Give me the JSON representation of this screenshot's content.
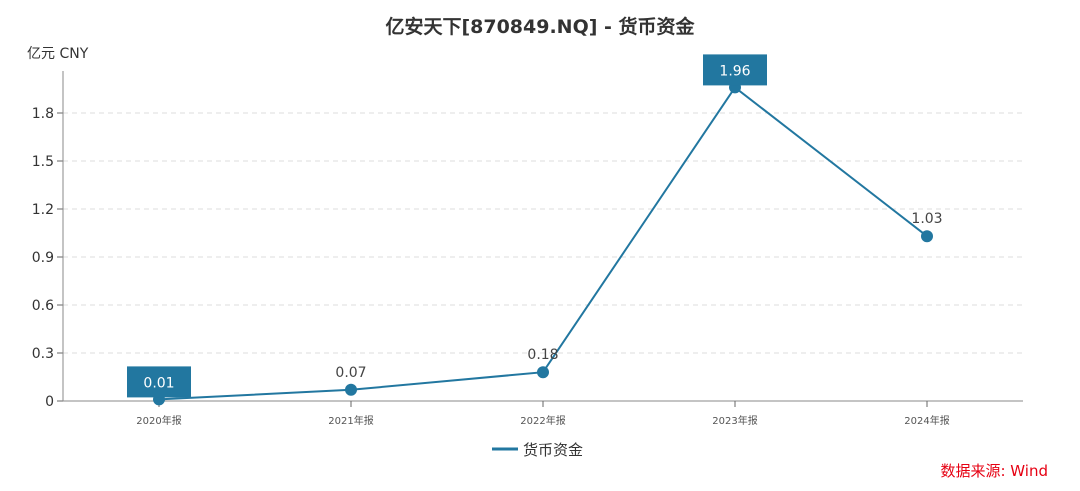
{
  "chart_data": {
    "type": "line",
    "title": "亿安天下[870849.NQ] - 货币资金",
    "ylabel": "亿元  CNY",
    "xlabel": "",
    "categories": [
      "2020年报",
      "2021年报",
      "2022年报",
      "2023年报",
      "2024年报"
    ],
    "series": [
      {
        "name": "货币资金",
        "values": [
          0.01,
          0.07,
          0.18,
          1.96,
          1.03
        ]
      }
    ],
    "value_labels": [
      "0.01",
      "0.07",
      "0.18",
      "1.96",
      "1.03"
    ],
    "highlighted_labels": [
      0,
      3
    ],
    "yticks": [
      "0",
      "0.3",
      "0.6",
      "0.9",
      "1.2",
      "1.5",
      "1.8"
    ],
    "ytick_values": [
      0,
      0.3,
      0.6,
      0.9,
      1.2,
      1.5,
      1.8
    ],
    "ylim": [
      0,
      1.95
    ],
    "grid": true,
    "legend": "bottom-center",
    "color": "#2277a0"
  },
  "source": "数据来源: Wind"
}
